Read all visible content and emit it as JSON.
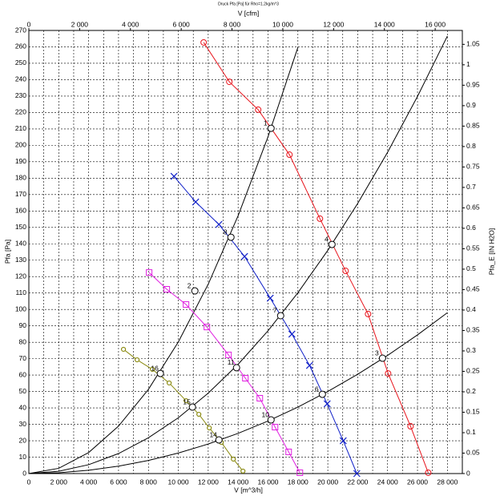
{
  "chart_data": {
    "type": "line",
    "title": "Druck Pfa [Pa] für Rho=1.2kg/m^3",
    "xlabel": "V [m^3/h]",
    "x2label": "V [cfm]",
    "ylabel": "Pfa [Pa]",
    "y2label": "Pfa_E [IN H2O]",
    "xlim": [
      0,
      29000
    ],
    "xticks": [
      0,
      {
        "value": 2000,
        "label": "2 000"
      },
      {
        "value": 4000,
        "label": "4 000"
      },
      {
        "value": 6000,
        "label": "6 000"
      },
      {
        "value": 8000,
        "label": "8 000"
      },
      {
        "value": 10000,
        "label": "10 000"
      },
      {
        "value": 12000,
        "label": "12 000"
      },
      {
        "value": 14000,
        "label": "14 000"
      },
      {
        "value": 16000,
        "label": "16 000"
      },
      {
        "value": 18000,
        "label": "18 000"
      },
      {
        "value": 20000,
        "label": "20 000"
      },
      {
        "value": 22000,
        "label": "22 000"
      },
      {
        "value": 24000,
        "label": "24 000"
      },
      {
        "value": 26000,
        "label": "26 000"
      },
      {
        "value": 28000,
        "label": "28 000"
      }
    ],
    "x_minor_grid": [
      1000,
      3000,
      5000,
      7000,
      9000,
      11000,
      13000,
      15000,
      17000,
      19000,
      21000,
      23000,
      25000,
      27000
    ],
    "x2lim": [
      0,
      17069
    ],
    "x2ticks": [
      0,
      {
        "value": 2000,
        "label": "2 000"
      },
      {
        "value": 4000,
        "label": "4 000"
      },
      {
        "value": 6000,
        "label": "6 000"
      },
      {
        "value": 8000,
        "label": "8 000"
      },
      {
        "value": 10000,
        "label": "10 000"
      },
      {
        "value": 12000,
        "label": "12 000"
      },
      {
        "value": 14000,
        "label": "14 000"
      },
      {
        "value": 16000,
        "label": "16 000"
      }
    ],
    "ylim": [
      0,
      270
    ],
    "yticks": [
      0,
      10,
      20,
      30,
      40,
      50,
      60,
      70,
      80,
      90,
      100,
      110,
      120,
      130,
      140,
      150,
      160,
      170,
      180,
      190,
      200,
      210,
      220,
      230,
      240,
      250,
      260,
      270
    ],
    "y2lim": [
      0,
      1.084
    ],
    "y2ticks": [
      0,
      0.05,
      0.1,
      0.15,
      0.2,
      0.25,
      0.3,
      0.35,
      0.4,
      0.45,
      0.5,
      0.55,
      0.6,
      0.65,
      0.7,
      0.75,
      0.8,
      0.85,
      0.9,
      0.95,
      1,
      1.05
    ],
    "grid": true,
    "series": [
      {
        "color": "#e8141c",
        "marker": "circle",
        "x": [
          11695,
          13412,
          15343,
          17436,
          19474,
          21191,
          22693,
          24034,
          25536,
          26717
        ],
        "values": [
          262.7,
          238.7,
          221.7,
          194.3,
          155.3,
          123.5,
          97.2,
          61.0,
          28.8,
          0.5
        ]
      },
      {
        "color": "#1020c8",
        "marker": "cross",
        "x": [
          9710,
          11159,
          12715,
          14431,
          16148,
          17597,
          18777,
          19957,
          21030,
          21942
        ],
        "values": [
          181.1,
          165.5,
          151.8,
          132.3,
          106.9,
          85.0,
          65.9,
          42.5,
          20.0,
          0
        ]
      },
      {
        "color": "#e020e0",
        "marker": "square",
        "x": [
          8047,
          9227,
          10515,
          11910,
          13358,
          14485,
          15451,
          16470,
          17382,
          18133
        ],
        "values": [
          122.5,
          112.3,
          103.0,
          89.3,
          72.3,
          58.1,
          45.9,
          28.3,
          13.2,
          0.5
        ]
      },
      {
        "color": "#8a8a10",
        "marker": "dot",
        "x": [
          6330,
          7242,
          8262,
          9388,
          10515,
          11373,
          12071,
          12876,
          13680,
          14324
        ],
        "values": [
          75.7,
          69.3,
          63.5,
          55.2,
          44.4,
          36.1,
          27.8,
          19.0,
          8.8,
          1.5
        ]
      }
    ],
    "system_curves": [
      {
        "color": "#000000",
        "x": [
          0,
          2000,
          4000,
          6000,
          8000,
          10000,
          12000,
          14000,
          16000,
          18000
        ],
        "values": [
          0,
          3.2,
          12.8,
          28.9,
          51.3,
          80.2,
          115.4,
          157.1,
          205.2,
          259.7
        ]
      },
      {
        "color": "#000000",
        "x": [
          0,
          2000,
          4000,
          6000,
          8000,
          10000,
          12000,
          14000,
          16000,
          18000,
          20000,
          22000,
          24000,
          26000,
          28000
        ],
        "values": [
          0,
          1.4,
          5.4,
          12.2,
          21.8,
          34.0,
          49.0,
          66.6,
          87.0,
          110.2,
          136.0,
          164.6,
          195.8,
          229.8,
          266.6
        ]
      },
      {
        "color": "#000000",
        "x": [
          0,
          2000,
          4000,
          6000,
          8000,
          10000,
          12000,
          14000,
          16000,
          18000,
          20000,
          22000,
          24000,
          26000,
          28000
        ],
        "values": [
          0,
          0.5,
          2.0,
          4.5,
          8.0,
          12.5,
          18.0,
          24.5,
          32.0,
          40.5,
          50.0,
          60.5,
          72.0,
          84.5,
          98.0
        ]
      }
    ],
    "points": [
      {
        "label": "1",
        "x": 16201,
        "y": 210.4
      },
      {
        "label": "8",
        "x": 13519,
        "y": 144.0
      },
      {
        "label": "2",
        "x": 11105,
        "y": 111.3
      },
      {
        "label": "16",
        "x": 8798,
        "y": 61.0
      },
      {
        "label": "4",
        "x": 20279,
        "y": 139.6
      },
      {
        "label": "7",
        "x": 16845,
        "y": 96.2
      },
      {
        "label": "11",
        "x": 13895,
        "y": 64.5
      },
      {
        "label": "15",
        "x": 10944,
        "y": 40.5
      },
      {
        "label": "3",
        "x": 23659,
        "y": 70.3
      },
      {
        "label": "6",
        "x": 19635,
        "y": 48.3
      },
      {
        "label": "10",
        "x": 16202,
        "y": 32.7
      },
      {
        "label": "14",
        "x": 12715,
        "y": 20.5
      }
    ]
  }
}
